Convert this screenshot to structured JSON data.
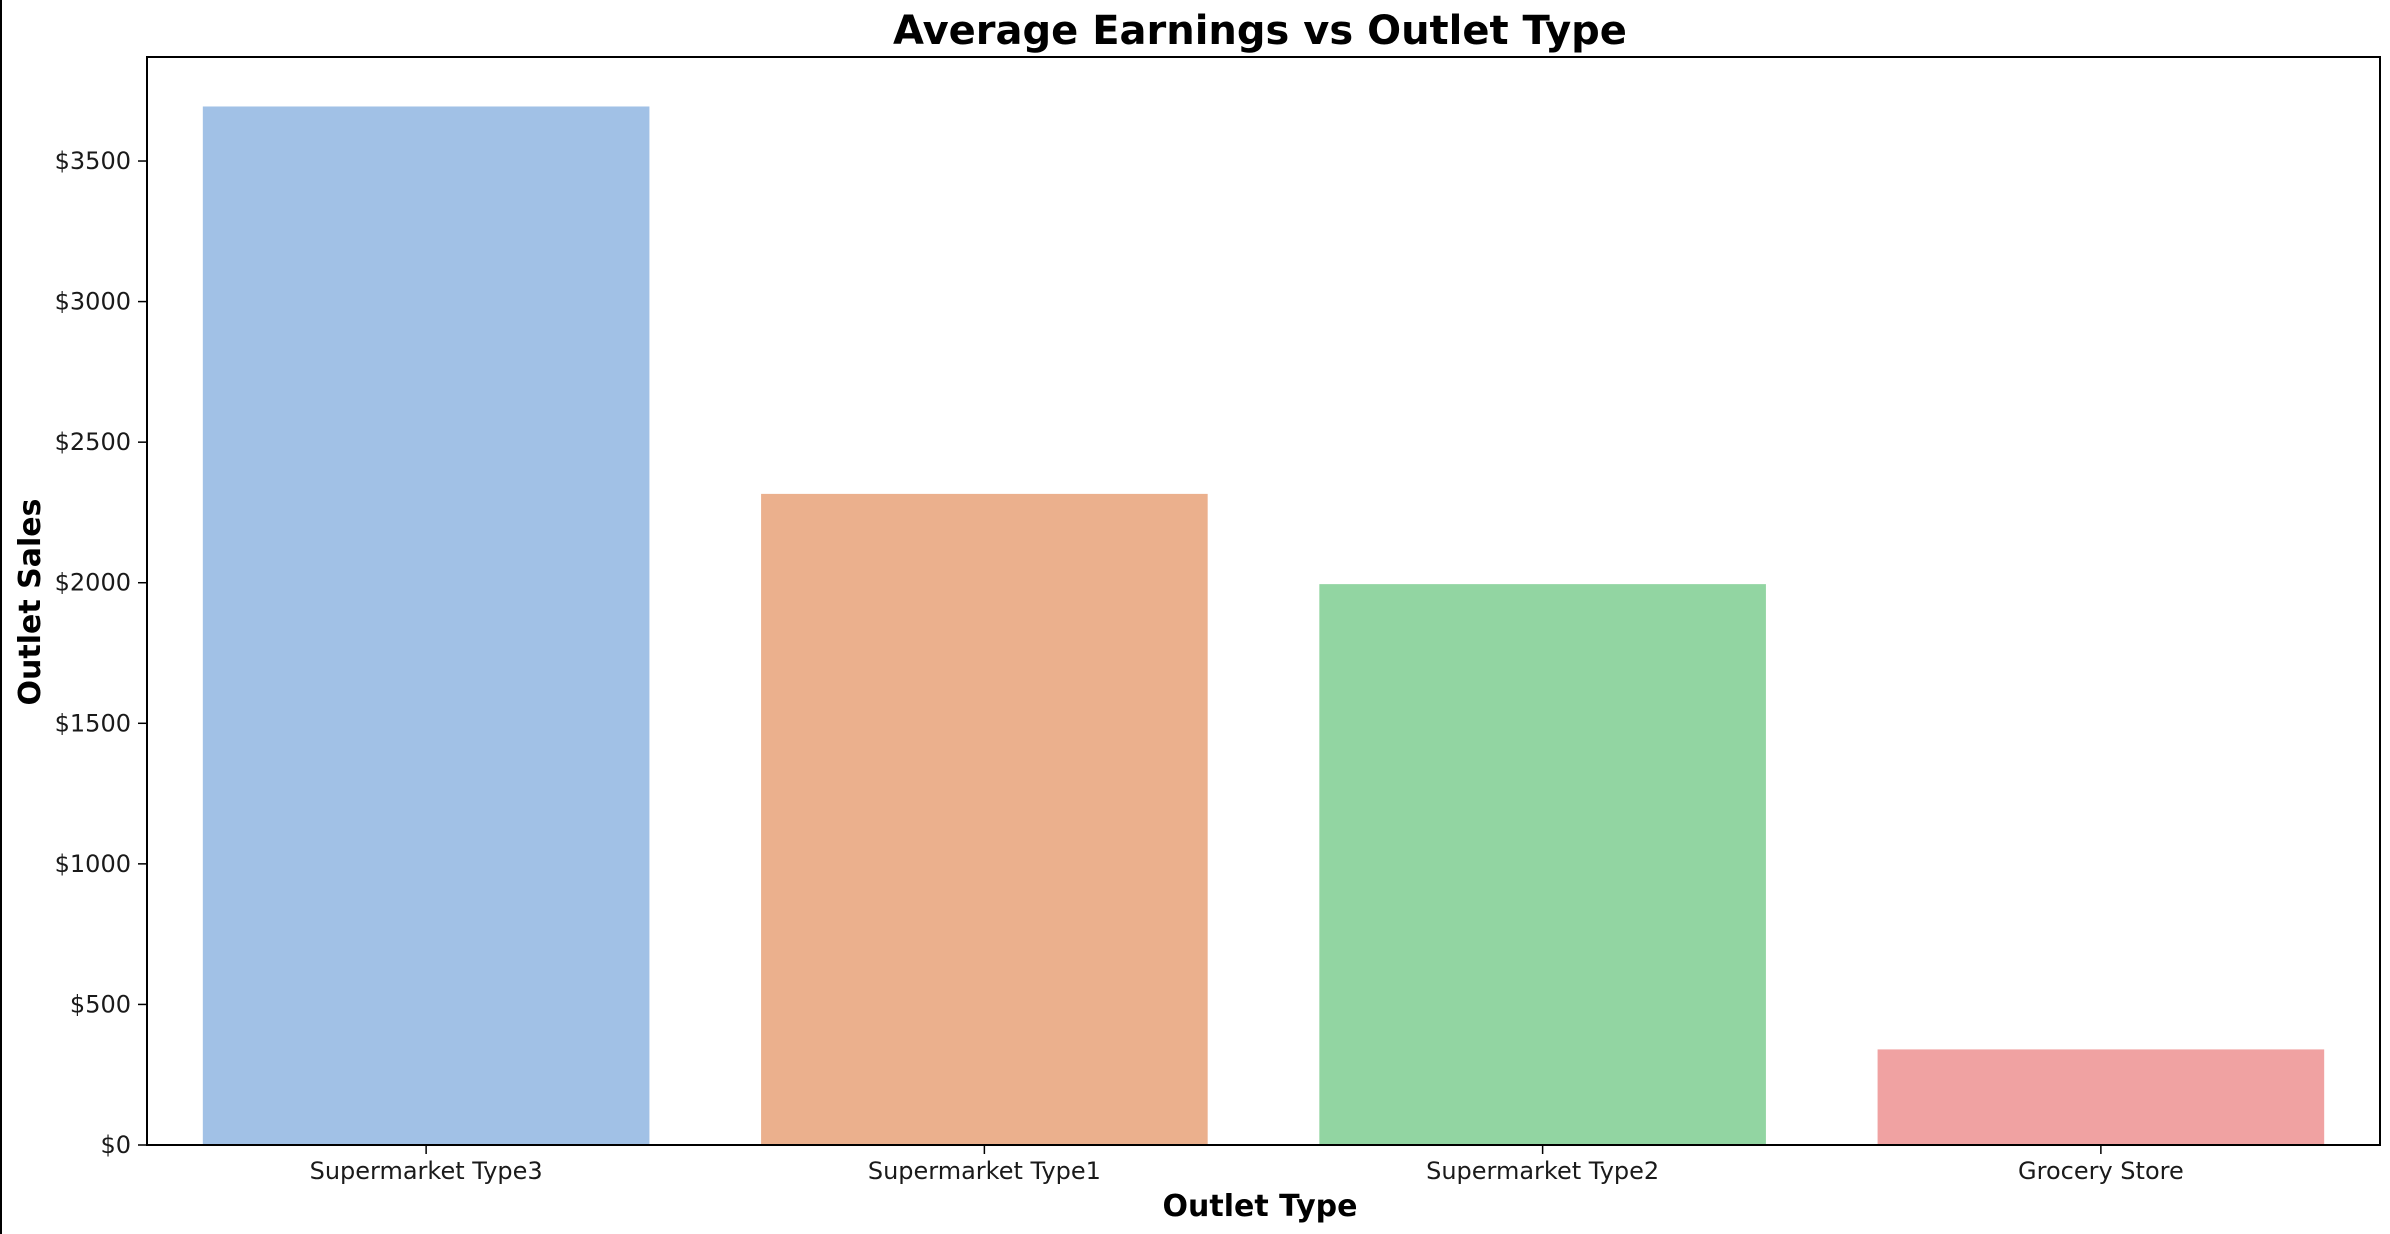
{
  "chart_data": {
    "type": "bar",
    "title": "Average Earnings vs Outlet Type",
    "xlabel": "Outlet Type",
    "ylabel": "Outlet Sales",
    "categories": [
      "Supermarket Type3",
      "Supermarket Type1",
      "Supermarket Type2",
      "Grocery Store"
    ],
    "values": [
      3694,
      2316,
      1995,
      340
    ],
    "colors": [
      "#a1c1e6",
      "#ebb08d",
      "#92d5a2",
      "#f0a2a2"
    ],
    "ylim": [
      0,
      3870
    ],
    "yticks": [
      0,
      500,
      1000,
      1500,
      2000,
      2500,
      3000,
      3500
    ],
    "ytick_labels": [
      "$0",
      "$500",
      "$1000",
      "$1500",
      "$2000",
      "$2500",
      "$3000",
      "$3500"
    ],
    "grid": false,
    "legend": "none"
  }
}
